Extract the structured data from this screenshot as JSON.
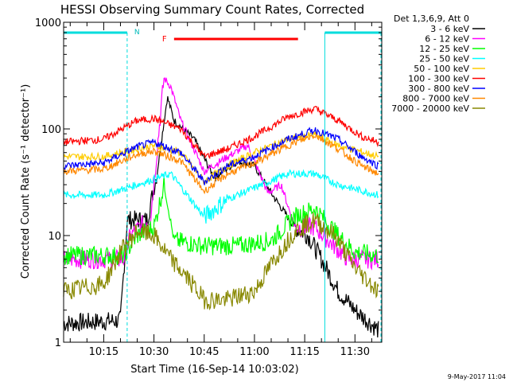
{
  "chart_data": {
    "type": "line",
    "title": "HESSI Observing Summary Count Rates, Corrected",
    "xlabel": "Start Time (16-Sep-14 10:03:02)",
    "ylabel": "Corrected Count Rate (s⁻¹ detector⁻¹)",
    "xlim": [
      "10:03:02",
      "11:38:00"
    ],
    "ylim": [
      1,
      1000
    ],
    "yscale": "log",
    "x_ticks": [
      "10:15",
      "10:30",
      "10:45",
      "11:00",
      "11:15",
      "11:30"
    ],
    "y_ticks": [
      "1",
      "10",
      "100",
      "1000"
    ],
    "legend_title": "Det 1,3,6,9, Att 0",
    "legend_position": "right",
    "footer": "9-May-2017 11:04",
    "flag_labels": {
      "night": "N",
      "flare": "F"
    },
    "night_intervals": [
      [
        "10:03:02",
        "10:22:00"
      ],
      [
        "11:21:00",
        "11:38:00"
      ]
    ],
    "flare_interval": [
      "10:36:00",
      "11:13:00"
    ],
    "series": [
      {
        "name": "3 - 6 keV",
        "color": "#000000",
        "points": [
          [
            "10:03",
            1.5
          ],
          [
            "10:20",
            1.6
          ],
          [
            "10:22",
            14
          ],
          [
            "10:28",
            14
          ],
          [
            "10:31",
            40
          ],
          [
            "10:34",
            200
          ],
          [
            "10:36",
            120
          ],
          [
            "10:42",
            80
          ],
          [
            "10:48",
            35
          ],
          [
            "10:55",
            50
          ],
          [
            "11:00",
            45
          ],
          [
            "11:05",
            25
          ],
          [
            "11:12",
            12
          ],
          [
            "11:16",
            10
          ],
          [
            "11:20",
            6
          ],
          [
            "11:25",
            3
          ],
          [
            "11:30",
            2
          ],
          [
            "11:37",
            1.3
          ]
        ]
      },
      {
        "name": "6 - 12 keV",
        "color": "#ff00ff",
        "points": [
          [
            "10:03",
            6
          ],
          [
            "10:21",
            6
          ],
          [
            "10:23",
            10
          ],
          [
            "10:29",
            15
          ],
          [
            "10:33",
            300
          ],
          [
            "10:35",
            250
          ],
          [
            "10:38",
            120
          ],
          [
            "10:45",
            40
          ],
          [
            "10:52",
            55
          ],
          [
            "10:58",
            70
          ],
          [
            "11:04",
            25
          ],
          [
            "11:08",
            30
          ],
          [
            "11:12",
            12
          ],
          [
            "11:18",
            12
          ],
          [
            "11:22",
            9
          ],
          [
            "11:28",
            6
          ],
          [
            "11:37",
            6
          ]
        ]
      },
      {
        "name": "12 - 25 keV",
        "color": "#00ff00",
        "points": [
          [
            "10:03",
            6.5
          ],
          [
            "10:21",
            6.5
          ],
          [
            "10:25",
            10
          ],
          [
            "10:30",
            12
          ],
          [
            "10:33",
            30
          ],
          [
            "10:36",
            9
          ],
          [
            "10:45",
            8
          ],
          [
            "10:55",
            8
          ],
          [
            "11:05",
            9
          ],
          [
            "11:12",
            15
          ],
          [
            "11:18",
            18
          ],
          [
            "11:25",
            10
          ],
          [
            "11:30",
            7
          ],
          [
            "11:37",
            6.5
          ]
        ]
      },
      {
        "name": "25 - 50 keV",
        "color": "#00ffff",
        "points": [
          [
            "10:03",
            24
          ],
          [
            "10:15",
            24
          ],
          [
            "10:25",
            30
          ],
          [
            "10:35",
            38
          ],
          [
            "10:45",
            15
          ],
          [
            "10:52",
            22
          ],
          [
            "11:00",
            28
          ],
          [
            "11:10",
            38
          ],
          [
            "11:18",
            38
          ],
          [
            "11:25",
            30
          ],
          [
            "11:37",
            24
          ]
        ]
      },
      {
        "name": "50 - 100 keV",
        "color": "#ffcc00",
        "points": [
          [
            "10:03",
            55
          ],
          [
            "10:15",
            55
          ],
          [
            "10:25",
            65
          ],
          [
            "10:30",
            70
          ],
          [
            "10:38",
            60
          ],
          [
            "10:45",
            32
          ],
          [
            "10:52",
            45
          ],
          [
            "11:00",
            60
          ],
          [
            "11:10",
            80
          ],
          [
            "11:18",
            88
          ],
          [
            "11:25",
            70
          ],
          [
            "11:37",
            55
          ]
        ]
      },
      {
        "name": "100 - 300 keV",
        "color": "#ff0000",
        "points": [
          [
            "10:03",
            75
          ],
          [
            "10:15",
            80
          ],
          [
            "10:25",
            120
          ],
          [
            "10:30",
            125
          ],
          [
            "10:38",
            100
          ],
          [
            "10:45",
            55
          ],
          [
            "10:52",
            65
          ],
          [
            "11:00",
            85
          ],
          [
            "11:10",
            130
          ],
          [
            "11:18",
            155
          ],
          [
            "11:25",
            120
          ],
          [
            "11:32",
            85
          ],
          [
            "11:37",
            75
          ]
        ]
      },
      {
        "name": "300 - 800 keV",
        "color": "#0000ff",
        "points": [
          [
            "10:03",
            45
          ],
          [
            "10:15",
            48
          ],
          [
            "10:25",
            68
          ],
          [
            "10:30",
            75
          ],
          [
            "10:38",
            60
          ],
          [
            "10:45",
            32
          ],
          [
            "10:52",
            45
          ],
          [
            "11:00",
            55
          ],
          [
            "11:10",
            80
          ],
          [
            "11:18",
            98
          ],
          [
            "11:25",
            80
          ],
          [
            "11:32",
            55
          ],
          [
            "11:37",
            45
          ]
        ]
      },
      {
        "name": "800 - 7000 keV",
        "color": "#ff8800",
        "points": [
          [
            "10:03",
            40
          ],
          [
            "10:15",
            42
          ],
          [
            "10:25",
            58
          ],
          [
            "10:30",
            62
          ],
          [
            "10:38",
            50
          ],
          [
            "10:45",
            26
          ],
          [
            "10:52",
            38
          ],
          [
            "11:00",
            48
          ],
          [
            "11:10",
            70
          ],
          [
            "11:18",
            88
          ],
          [
            "11:25",
            65
          ],
          [
            "11:32",
            45
          ],
          [
            "11:37",
            38
          ]
        ]
      },
      {
        "name": "7000 - 20000 keV",
        "color": "#888800",
        "points": [
          [
            "10:03",
            3
          ],
          [
            "10:15",
            3.5
          ],
          [
            "10:20",
            7
          ],
          [
            "10:25",
            11
          ],
          [
            "10:30",
            10
          ],
          [
            "10:35",
            6
          ],
          [
            "10:40",
            4
          ],
          [
            "10:45",
            2.5
          ],
          [
            "10:52",
            2.5
          ],
          [
            "11:00",
            3
          ],
          [
            "11:06",
            6
          ],
          [
            "11:12",
            11
          ],
          [
            "11:18",
            14
          ],
          [
            "11:24",
            10
          ],
          [
            "11:30",
            5
          ],
          [
            "11:37",
            3
          ]
        ]
      }
    ]
  }
}
